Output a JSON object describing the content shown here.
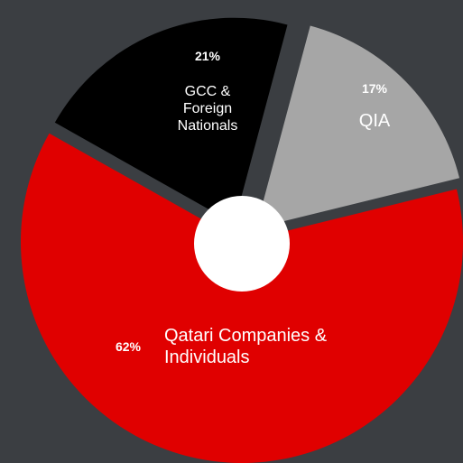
{
  "chart_data": {
    "type": "pie",
    "categories": [
      "QIA",
      "Qatari Companies & Individuals",
      "GCC & Foreign Nationals"
    ],
    "values": [
      17,
      62,
      21
    ],
    "value_labels": [
      "17%",
      "62%",
      "21%"
    ],
    "colors": [
      "#a6a6a6",
      "#e00000",
      "#000000"
    ]
  }
}
